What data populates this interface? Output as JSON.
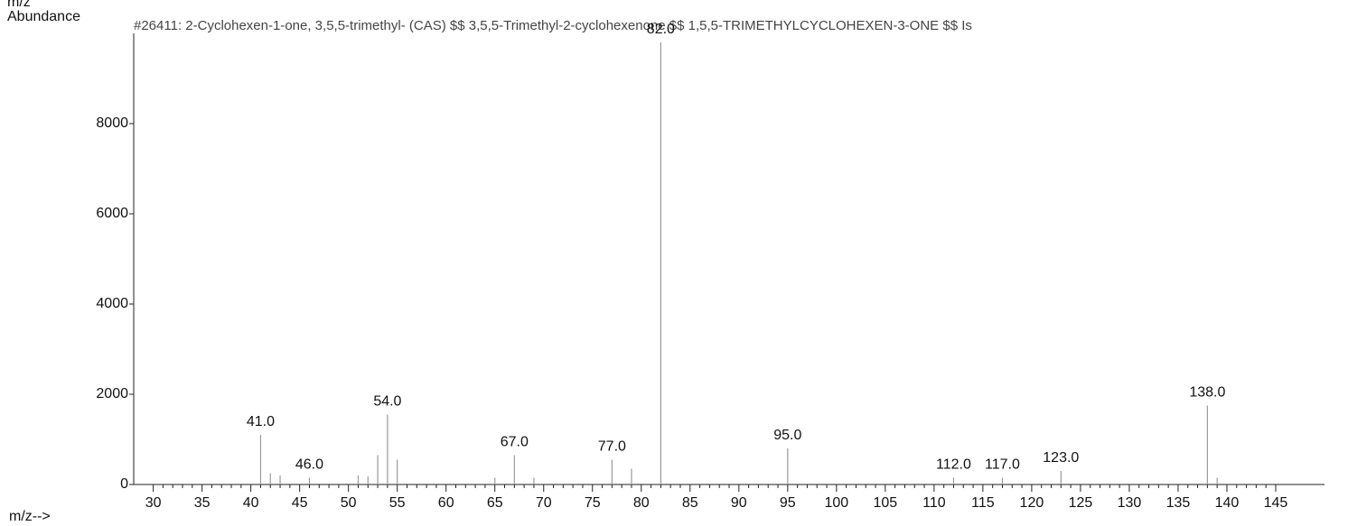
{
  "chart_data": {
    "type": "stem",
    "title": "#26411: 2-Cyclohexen-1-one, 3,5,5-trimethyl- (CAS) $$ 3,5,5-Trimethyl-2-cyclohexenone $$ 1,5,5-TRIMETHYLCYCLOHEXEN-3-ONE $$ Is",
    "top_label": "m/z",
    "y_label": "Abundance",
    "x_label": "m/z-->",
    "x": [
      41,
      42,
      43,
      46,
      51,
      52,
      53,
      54,
      55,
      65,
      67,
      69,
      77,
      79,
      82,
      95,
      112,
      117,
      123,
      138,
      139
    ],
    "values": [
      1100,
      250,
      200,
      150,
      200,
      180,
      650,
      1550,
      550,
      150,
      650,
      150,
      550,
      350,
      9800,
      800,
      150,
      150,
      300,
      1750,
      150
    ],
    "value_labels": [
      "41.0",
      null,
      null,
      "46.0",
      null,
      null,
      null,
      "54.0",
      null,
      null,
      "67.0",
      null,
      "77.0",
      null,
      "82.0",
      "95.0",
      "112.0",
      "117.0",
      "123.0",
      "138.0",
      null
    ],
    "color": "#9a9a9a",
    "xlim": [
      28,
      150
    ],
    "ylim": [
      0,
      10000
    ],
    "xticks": [
      30,
      35,
      40,
      45,
      50,
      55,
      60,
      65,
      70,
      75,
      80,
      85,
      90,
      95,
      100,
      105,
      110,
      115,
      120,
      125,
      130,
      135,
      140,
      145
    ],
    "yticks": [
      0,
      2000,
      4000,
      6000,
      8000
    ]
  }
}
